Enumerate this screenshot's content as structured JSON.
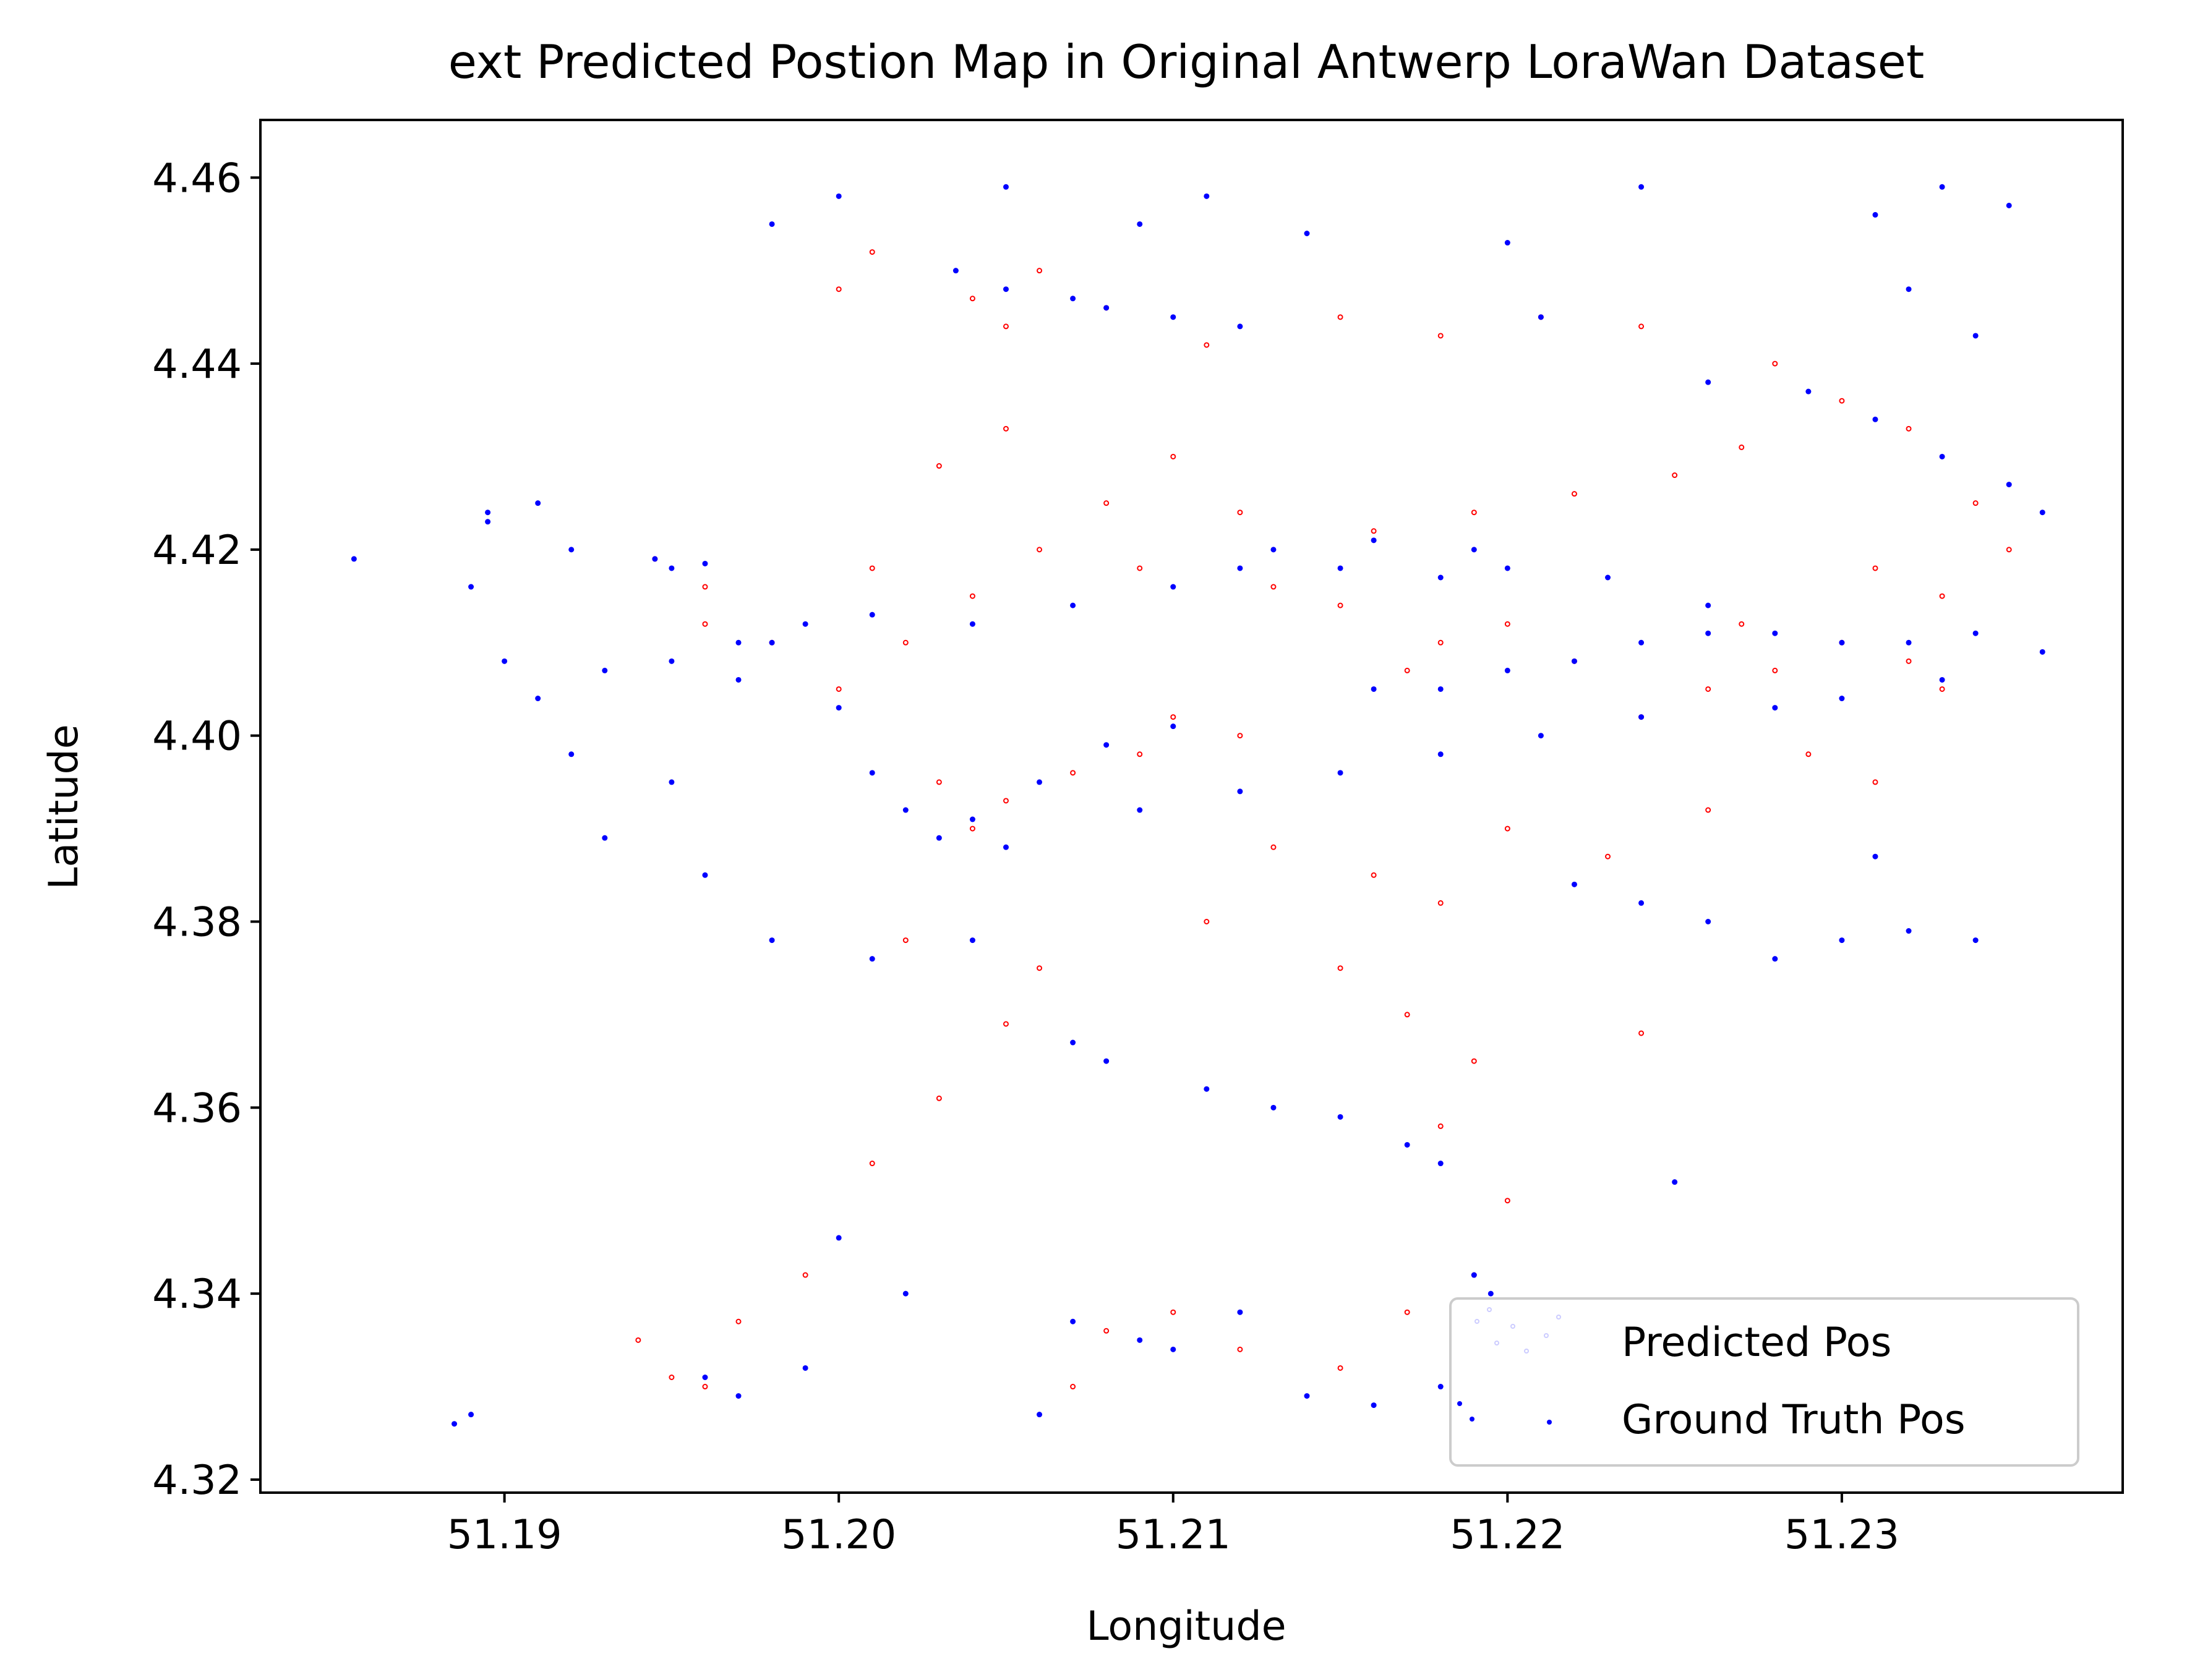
{
  "chart_data": {
    "type": "scatter",
    "title": "ext Predicted Postion Map in Original Antwerp LoraWan Dataset",
    "xlabel": "Longitude",
    "ylabel": "Latitude",
    "xlim": [
      51.1827,
      51.2384
    ],
    "ylim": [
      4.3186,
      4.4662
    ],
    "xticks": [
      "51.19",
      "51.20",
      "51.21",
      "51.22",
      "51.23"
    ],
    "xtick_values": [
      51.19,
      51.2,
      51.21,
      51.22,
      51.23
    ],
    "yticks": [
      "4.32",
      "4.34",
      "4.36",
      "4.38",
      "4.40",
      "4.42",
      "4.44",
      "4.46"
    ],
    "ytick_values": [
      4.32,
      4.34,
      4.36,
      4.38,
      4.4,
      4.42,
      4.44,
      4.46
    ],
    "grid": false,
    "legend_position": "lower right",
    "series": [
      {
        "name": "Predicted Pos",
        "color": "#ff0000",
        "marker": "hollow-circle",
        "points": [
          [
            51.204,
            4.447
          ],
          [
            51.206,
            4.45
          ],
          [
            51.205,
            4.444
          ],
          [
            51.208,
            4.446
          ],
          [
            51.211,
            4.442
          ],
          [
            51.215,
            4.445
          ],
          [
            51.218,
            4.443
          ],
          [
            51.221,
            4.445
          ],
          [
            51.224,
            4.444
          ],
          [
            51.228,
            4.44
          ],
          [
            51.23,
            4.436
          ],
          [
            51.232,
            4.433
          ],
          [
            51.234,
            4.425
          ],
          [
            51.235,
            4.42
          ],
          [
            51.233,
            4.415
          ],
          [
            51.23,
            4.41
          ],
          [
            51.232,
            4.408
          ],
          [
            51.228,
            4.407
          ],
          [
            51.226,
            4.405
          ],
          [
            51.224,
            4.402
          ],
          [
            51.22,
            4.412
          ],
          [
            51.218,
            4.41
          ],
          [
            51.217,
            4.407
          ],
          [
            51.215,
            4.414
          ],
          [
            51.213,
            4.416
          ],
          [
            51.216,
            4.422
          ],
          [
            51.219,
            4.424
          ],
          [
            51.222,
            4.426
          ],
          [
            51.225,
            4.428
          ],
          [
            51.227,
            4.431
          ],
          [
            51.21,
            4.43
          ],
          [
            51.208,
            4.425
          ],
          [
            51.206,
            4.42
          ],
          [
            51.204,
            4.415
          ],
          [
            51.202,
            4.41
          ],
          [
            51.2,
            4.405
          ],
          [
            51.203,
            4.395
          ],
          [
            51.205,
            4.393
          ],
          [
            51.207,
            4.396
          ],
          [
            51.204,
            4.39
          ],
          [
            51.21,
            4.402
          ],
          [
            51.212,
            4.4
          ],
          [
            51.209,
            4.398
          ],
          [
            51.198,
            4.41
          ],
          [
            51.196,
            4.412
          ],
          [
            51.1945,
            4.419
          ],
          [
            51.196,
            4.416
          ],
          [
            51.201,
            4.418
          ],
          [
            51.205,
            4.433
          ],
          [
            51.203,
            4.429
          ],
          [
            51.213,
            4.388
          ],
          [
            51.216,
            4.385
          ],
          [
            51.218,
            4.382
          ],
          [
            51.22,
            4.39
          ],
          [
            51.223,
            4.387
          ],
          [
            51.226,
            4.392
          ],
          [
            51.229,
            4.398
          ],
          [
            51.231,
            4.395
          ],
          [
            51.215,
            4.375
          ],
          [
            51.217,
            4.37
          ],
          [
            51.219,
            4.365
          ],
          [
            51.218,
            4.358
          ],
          [
            51.22,
            4.35
          ],
          [
            51.219,
            4.342
          ],
          [
            51.217,
            4.338
          ],
          [
            51.215,
            4.332
          ],
          [
            51.212,
            4.334
          ],
          [
            51.21,
            4.338
          ],
          [
            51.208,
            4.336
          ],
          [
            51.207,
            4.33
          ],
          [
            51.203,
            4.361
          ],
          [
            51.201,
            4.354
          ],
          [
            51.199,
            4.342
          ],
          [
            51.197,
            4.337
          ],
          [
            51.195,
            4.331
          ],
          [
            51.194,
            4.335
          ],
          [
            51.196,
            4.33
          ],
          [
            51.202,
            4.378
          ],
          [
            51.206,
            4.375
          ],
          [
            51.211,
            4.38
          ],
          [
            51.224,
            4.368
          ],
          [
            51.205,
            4.369
          ],
          [
            51.201,
            4.452
          ],
          [
            51.2,
            4.448
          ],
          [
            51.227,
            4.412
          ],
          [
            51.231,
            4.418
          ],
          [
            51.233,
            4.405
          ],
          [
            51.222,
            4.408
          ],
          [
            51.212,
            4.424
          ],
          [
            51.209,
            4.418
          ]
        ]
      },
      {
        "name": "Ground Truth Pos",
        "color": "#0000ff",
        "marker": "filled-circle",
        "points": [
          [
            51.2035,
            4.45
          ],
          [
            51.205,
            4.448
          ],
          [
            51.207,
            4.447
          ],
          [
            51.208,
            4.446
          ],
          [
            51.21,
            4.445
          ],
          [
            51.212,
            4.444
          ],
          [
            51.226,
            4.438
          ],
          [
            51.229,
            4.437
          ],
          [
            51.231,
            4.434
          ],
          [
            51.233,
            4.43
          ],
          [
            51.235,
            4.427
          ],
          [
            51.236,
            4.424
          ],
          [
            51.234,
            4.411
          ],
          [
            51.232,
            4.41
          ],
          [
            51.23,
            4.41
          ],
          [
            51.228,
            4.411
          ],
          [
            51.226,
            4.411
          ],
          [
            51.224,
            4.41
          ],
          [
            51.222,
            4.408
          ],
          [
            51.22,
            4.407
          ],
          [
            51.218,
            4.405
          ],
          [
            51.216,
            4.405
          ],
          [
            51.236,
            4.409
          ],
          [
            51.233,
            4.406
          ],
          [
            51.23,
            4.404
          ],
          [
            51.228,
            4.403
          ],
          [
            51.224,
            4.402
          ],
          [
            51.221,
            4.4
          ],
          [
            51.218,
            4.398
          ],
          [
            51.215,
            4.396
          ],
          [
            51.212,
            4.394
          ],
          [
            51.209,
            4.392
          ],
          [
            51.212,
            4.418
          ],
          [
            51.215,
            4.418
          ],
          [
            51.218,
            4.417
          ],
          [
            51.22,
            4.418
          ],
          [
            51.223,
            4.417
          ],
          [
            51.226,
            4.414
          ],
          [
            51.213,
            4.42
          ],
          [
            51.216,
            4.421
          ],
          [
            51.219,
            4.42
          ],
          [
            51.21,
            4.416
          ],
          [
            51.207,
            4.414
          ],
          [
            51.204,
            4.412
          ],
          [
            51.201,
            4.413
          ],
          [
            51.199,
            4.412
          ],
          [
            51.197,
            4.41
          ],
          [
            51.195,
            4.408
          ],
          [
            51.193,
            4.407
          ],
          [
            51.206,
            4.395
          ],
          [
            51.208,
            4.399
          ],
          [
            51.21,
            4.401
          ],
          [
            51.204,
            4.391
          ],
          [
            51.203,
            4.389
          ],
          [
            51.205,
            4.388
          ],
          [
            51.202,
            4.392
          ],
          [
            51.201,
            4.396
          ],
          [
            51.2,
            4.403
          ],
          [
            51.1945,
            4.419
          ],
          [
            51.195,
            4.418
          ],
          [
            51.196,
            4.4185
          ],
          [
            51.198,
            4.41
          ],
          [
            51.197,
            4.406
          ],
          [
            51.195,
            4.395
          ],
          [
            51.193,
            4.389
          ],
          [
            51.192,
            4.398
          ],
          [
            51.191,
            4.404
          ],
          [
            51.19,
            4.408
          ],
          [
            51.189,
            4.416
          ],
          [
            51.1895,
            4.424
          ],
          [
            51.191,
            4.425
          ],
          [
            51.192,
            4.42
          ],
          [
            51.1855,
            4.419
          ],
          [
            51.1895,
            4.423
          ],
          [
            51.196,
            4.385
          ],
          [
            51.198,
            4.378
          ],
          [
            51.201,
            4.376
          ],
          [
            51.204,
            4.378
          ],
          [
            51.207,
            4.367
          ],
          [
            51.208,
            4.365
          ],
          [
            51.211,
            4.362
          ],
          [
            51.213,
            4.36
          ],
          [
            51.215,
            4.359
          ],
          [
            51.217,
            4.356
          ],
          [
            51.218,
            4.354
          ],
          [
            51.219,
            4.342
          ],
          [
            51.2195,
            4.34
          ],
          [
            51.218,
            4.33
          ],
          [
            51.216,
            4.328
          ],
          [
            51.214,
            4.329
          ],
          [
            51.212,
            4.338
          ],
          [
            51.21,
            4.334
          ],
          [
            51.209,
            4.335
          ],
          [
            51.207,
            4.337
          ],
          [
            51.206,
            4.327
          ],
          [
            51.202,
            4.34
          ],
          [
            51.2,
            4.346
          ],
          [
            51.199,
            4.332
          ],
          [
            51.197,
            4.329
          ],
          [
            51.196,
            4.331
          ],
          [
            51.189,
            4.327
          ],
          [
            51.1885,
            4.326
          ],
          [
            51.221,
            4.445
          ],
          [
            51.22,
            4.453
          ],
          [
            51.211,
            4.458
          ],
          [
            51.209,
            4.455
          ],
          [
            51.205,
            4.459
          ],
          [
            51.2,
            4.458
          ],
          [
            51.198,
            4.455
          ],
          [
            51.214,
            4.454
          ],
          [
            51.224,
            4.459
          ],
          [
            51.233,
            4.459
          ],
          [
            51.231,
            4.456
          ],
          [
            51.235,
            4.457
          ],
          [
            51.234,
            4.443
          ],
          [
            51.232,
            4.448
          ],
          [
            51.231,
            4.387
          ],
          [
            51.23,
            4.378
          ],
          [
            51.232,
            4.379
          ],
          [
            51.234,
            4.378
          ],
          [
            51.226,
            4.38
          ],
          [
            51.224,
            4.382
          ],
          [
            51.222,
            4.384
          ],
          [
            51.228,
            4.376
          ],
          [
            51.225,
            4.352
          ]
        ]
      }
    ]
  },
  "colors": {
    "axis": "#000000",
    "background": "#ffffff",
    "legend_border": "#cccccc"
  }
}
